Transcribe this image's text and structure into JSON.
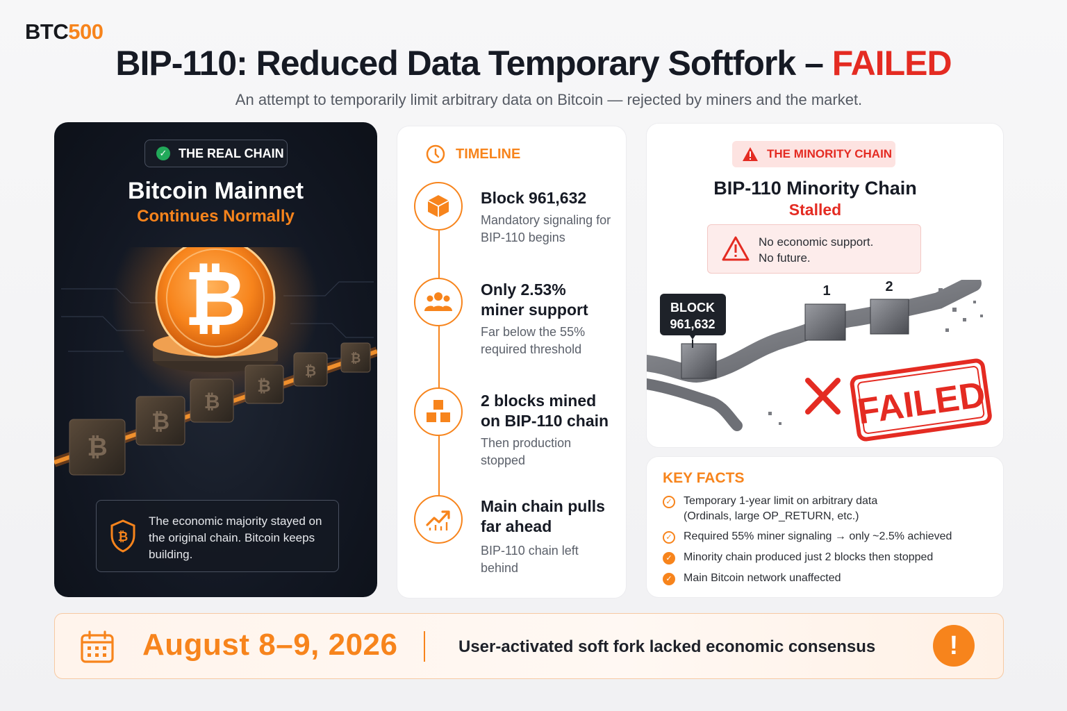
{
  "brand": {
    "part1": "BTC",
    "part2": "500"
  },
  "header": {
    "title_main": "BIP-110: Reduced Data Temporary Softfork – ",
    "title_status": "FAILED",
    "subtitle": "An attempt to temporarily limit arbitrary data on Bitcoin — rejected by miners and the market."
  },
  "real_chain": {
    "badge": "THE REAL CHAIN",
    "title": "Bitcoin Mainnet",
    "subtitle": "Continues Normally",
    "note": "The economic majority stayed on the original chain. Bitcoin keeps building.",
    "icons": [
      "check-icon",
      "bitcoin-coin-icon",
      "bitcoin-shield-icon"
    ]
  },
  "timeline": {
    "heading": "TIMELINE",
    "items": [
      {
        "icon": "cube-icon",
        "title": "Block 961,632",
        "desc": "Mandatory signaling for BIP-110 begins"
      },
      {
        "icon": "users-icon",
        "title": "Only 2.53% miner support",
        "desc": "Far below the 55% required threshold"
      },
      {
        "icon": "cubes-icon",
        "title": "2 blocks mined on BIP-110 chain",
        "desc": "Then production stopped"
      },
      {
        "icon": "trend-up-icon",
        "title": "Main chain pulls far ahead",
        "desc": "BIP-110 chain left behind"
      }
    ]
  },
  "minority_chain": {
    "badge": "THE MINORITY CHAIN",
    "title": "BIP-110 Minority Chain",
    "status": "Stalled",
    "warning_line1": "No economic support.",
    "warning_line2": "No future.",
    "block_label_line1": "BLOCK",
    "block_label_line2": "961,632",
    "block_numbers": [
      "1",
      "2"
    ],
    "stamp": "FAILED"
  },
  "key_facts": {
    "heading": "KEY FACTS",
    "items": [
      {
        "text": "Temporary 1-year limit on arbitrary data (Ordinals, large OP_RETURN, etc.)",
        "style": "outline"
      },
      {
        "text": "Required 55% miner signaling → only ~2.5% achieved",
        "style": "outline"
      },
      {
        "text": "Minority chain produced just 2 blocks then stopped",
        "style": "filled"
      },
      {
        "text": "Main Bitcoin network unaffected",
        "style": "filled"
      }
    ]
  },
  "footer": {
    "date": "August 8–9, 2026",
    "message": "User-activated soft fork lacked economic consensus",
    "alert": "!"
  },
  "colors": {
    "accent": "#f7841c",
    "fail": "#e42b22",
    "success": "#22a95a",
    "dark": "#121722"
  }
}
